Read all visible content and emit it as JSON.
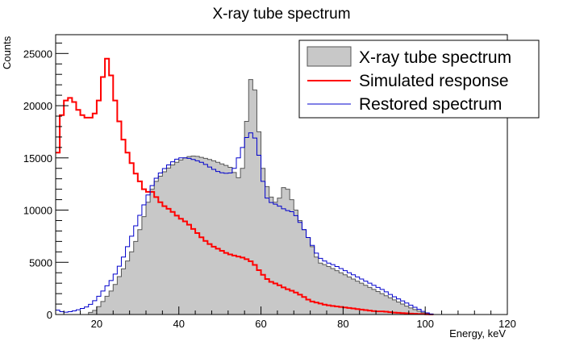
{
  "chart_data": {
    "type": "histogram",
    "title": "X-ray tube spectrum",
    "xlabel": "Energy, keV",
    "ylabel": "Counts",
    "xlim": [
      10,
      120
    ],
    "ylim": [
      0,
      26800
    ],
    "x_ticks": [
      20,
      40,
      60,
      80,
      100,
      120
    ],
    "y_ticks": [
      0,
      5000,
      10000,
      15000,
      20000,
      25000
    ],
    "legend_position": "top-right",
    "grid": false,
    "bin_width": 1,
    "series": [
      {
        "name": "X-ray tube spectrum",
        "style": "filled-histogram",
        "fill_color": "#c8c8c8",
        "line_color": "#555555",
        "points": [
          [
            18,
            100
          ],
          [
            20,
            500
          ],
          [
            22,
            1500
          ],
          [
            24,
            2500
          ],
          [
            26,
            4000
          ],
          [
            28,
            5500
          ],
          [
            30,
            7500
          ],
          [
            32,
            10000
          ],
          [
            33,
            11500
          ],
          [
            34,
            12500
          ],
          [
            36,
            13500
          ],
          [
            38,
            14200
          ],
          [
            40,
            14700
          ],
          [
            42,
            15100
          ],
          [
            44,
            15200
          ],
          [
            46,
            15000
          ],
          [
            48,
            14800
          ],
          [
            50,
            14500
          ],
          [
            52,
            14200
          ],
          [
            53,
            14000
          ],
          [
            54,
            13200
          ],
          [
            55,
            13000
          ],
          [
            56,
            15000
          ],
          [
            57,
            22000
          ],
          [
            58,
            23000
          ],
          [
            59,
            20000
          ],
          [
            60,
            15000
          ],
          [
            61,
            13000
          ],
          [
            62,
            11500
          ],
          [
            64,
            10500
          ],
          [
            65,
            11800
          ],
          [
            66,
            12500
          ],
          [
            67,
            11500
          ],
          [
            68,
            10500
          ],
          [
            70,
            8500
          ],
          [
            72,
            7000
          ],
          [
            74,
            5000
          ],
          [
            76,
            4700
          ],
          [
            78,
            4300
          ],
          [
            80,
            3900
          ],
          [
            82,
            3500
          ],
          [
            84,
            3100
          ],
          [
            86,
            2700
          ],
          [
            88,
            2300
          ],
          [
            90,
            1900
          ],
          [
            92,
            1500
          ],
          [
            94,
            1100
          ],
          [
            96,
            700
          ],
          [
            98,
            400
          ],
          [
            100,
            100
          ],
          [
            102,
            0
          ]
        ]
      },
      {
        "name": "Simulated response",
        "style": "step-line",
        "color": "#ff0000",
        "points": [
          [
            10,
            13000
          ],
          [
            11,
            18000
          ],
          [
            12,
            20200
          ],
          [
            13,
            20800
          ],
          [
            14,
            20700
          ],
          [
            15,
            20000
          ],
          [
            16,
            19200
          ],
          [
            17,
            19000
          ],
          [
            18,
            18700
          ],
          [
            19,
            19000
          ],
          [
            20,
            19500
          ],
          [
            21,
            21500
          ],
          [
            22,
            24000
          ],
          [
            22.5,
            24500
          ],
          [
            23,
            24300
          ],
          [
            24,
            21500
          ],
          [
            25,
            19500
          ],
          [
            26,
            17500
          ],
          [
            27,
            16000
          ],
          [
            28,
            15000
          ],
          [
            29,
            14000
          ],
          [
            30,
            13000
          ],
          [
            31,
            12500
          ],
          [
            32,
            11500
          ],
          [
            33,
            12000
          ],
          [
            34,
            11500
          ],
          [
            35,
            11000
          ],
          [
            36,
            10500
          ],
          [
            38,
            10000
          ],
          [
            40,
            9300
          ],
          [
            42,
            8800
          ],
          [
            44,
            8000
          ],
          [
            46,
            7200
          ],
          [
            48,
            6600
          ],
          [
            50,
            6200
          ],
          [
            52,
            5800
          ],
          [
            54,
            5600
          ],
          [
            56,
            5400
          ],
          [
            58,
            5000
          ],
          [
            60,
            4000
          ],
          [
            62,
            3200
          ],
          [
            64,
            2900
          ],
          [
            66,
            2500
          ],
          [
            68,
            2200
          ],
          [
            70,
            1800
          ],
          [
            72,
            1300
          ],
          [
            74,
            1100
          ],
          [
            76,
            900
          ],
          [
            78,
            800
          ],
          [
            80,
            700
          ],
          [
            82,
            600
          ],
          [
            84,
            500
          ],
          [
            86,
            400
          ],
          [
            88,
            300
          ],
          [
            90,
            300
          ],
          [
            92,
            200
          ],
          [
            94,
            150
          ],
          [
            96,
            100
          ],
          [
            98,
            60
          ],
          [
            100,
            30
          ],
          [
            102,
            0
          ]
        ]
      },
      {
        "name": "Restored spectrum",
        "style": "step-line",
        "color": "#0000cc",
        "points": [
          [
            10,
            500
          ],
          [
            12,
            200
          ],
          [
            14,
            300
          ],
          [
            16,
            500
          ],
          [
            18,
            800
          ],
          [
            20,
            1500
          ],
          [
            22,
            2500
          ],
          [
            24,
            3500
          ],
          [
            26,
            5000
          ],
          [
            28,
            7000
          ],
          [
            30,
            9000
          ],
          [
            32,
            11000
          ],
          [
            34,
            12800
          ],
          [
            36,
            13800
          ],
          [
            38,
            14500
          ],
          [
            40,
            15000
          ],
          [
            42,
            15000
          ],
          [
            44,
            14800
          ],
          [
            46,
            14500
          ],
          [
            48,
            14000
          ],
          [
            50,
            13600
          ],
          [
            52,
            13500
          ],
          [
            53,
            13600
          ],
          [
            54,
            14400
          ],
          [
            55,
            15600
          ],
          [
            56,
            16400
          ],
          [
            57,
            17500
          ],
          [
            58,
            17300
          ],
          [
            59,
            16500
          ],
          [
            60,
            14000
          ],
          [
            61,
            11500
          ],
          [
            62,
            10800
          ],
          [
            64,
            10500
          ],
          [
            66,
            10000
          ],
          [
            67,
            9900
          ],
          [
            68,
            9800
          ],
          [
            70,
            8500
          ],
          [
            72,
            7000
          ],
          [
            74,
            5500
          ],
          [
            76,
            5000
          ],
          [
            78,
            4700
          ],
          [
            80,
            4300
          ],
          [
            82,
            3900
          ],
          [
            84,
            3500
          ],
          [
            86,
            3100
          ],
          [
            88,
            2700
          ],
          [
            90,
            2300
          ],
          [
            92,
            1800
          ],
          [
            94,
            1400
          ],
          [
            96,
            1000
          ],
          [
            98,
            600
          ],
          [
            100,
            200
          ],
          [
            102,
            0
          ]
        ]
      }
    ]
  }
}
